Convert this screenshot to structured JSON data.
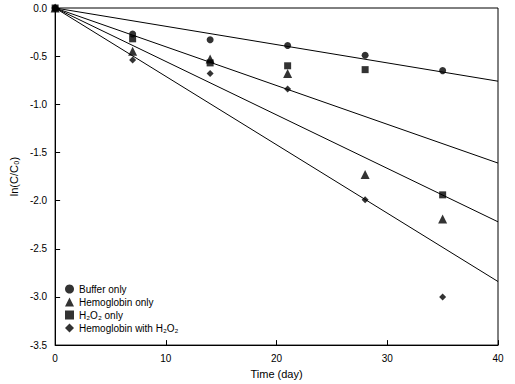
{
  "chart_data": {
    "type": "scatter",
    "x_label": "Time (day)",
    "y_label": "ln(C/C₀)",
    "x": [
      0,
      7,
      14,
      21,
      28,
      35
    ],
    "xlim": [
      0,
      40
    ],
    "xticks": [
      0,
      10,
      20,
      30,
      40
    ],
    "ylim": [
      -3.5,
      0
    ],
    "yticks": [
      {
        "value": -3.5,
        "label": "-3.5"
      },
      {
        "value": -3,
        "label": "-3.0"
      },
      {
        "value": -2.5,
        "label": "-2.5"
      },
      {
        "value": -2,
        "label": "-2.0"
      },
      {
        "value": -1.5,
        "label": "-1.5"
      },
      {
        "value": -1,
        "label": "-1.0"
      },
      {
        "value": -0.5,
        "label": "-0.5"
      },
      {
        "value": 0,
        "label": "0.0"
      }
    ],
    "grid": false,
    "legend": "lower left",
    "series": [
      {
        "name": "Buffer only",
        "color": "#000000",
        "marker": "circle",
        "values": [
          0,
          -0.27,
          -0.33,
          -0.39,
          -0.49,
          -0.65
        ],
        "fit": [
          [
            0,
            0
          ],
          [
            40,
            -0.76
          ]
        ]
      },
      {
        "name": "Hemoglobin only",
        "color": "#000000",
        "marker": "triangle",
        "values": [
          0,
          -0.45,
          -0.53,
          -0.68,
          -1.73,
          -2.19
        ],
        "fit": [
          [
            0,
            0
          ],
          [
            40,
            -2.22
          ]
        ]
      },
      {
        "name": "H₂O₂ only",
        "color": "#000000",
        "marker": "square",
        "values": [
          0,
          -0.32,
          -0.57,
          -0.6,
          -0.64,
          -1.94
        ],
        "fit": [
          [
            0,
            0
          ],
          [
            40,
            -1.61
          ]
        ]
      },
      {
        "name": "Hemoglobin with H₂O₂",
        "color": "#000000",
        "marker": "diamond",
        "values": [
          0,
          -0.54,
          -0.68,
          -0.84,
          -1.99,
          -3.0
        ],
        "fit": [
          [
            0,
            0
          ],
          [
            40,
            -2.84
          ]
        ]
      }
    ]
  }
}
